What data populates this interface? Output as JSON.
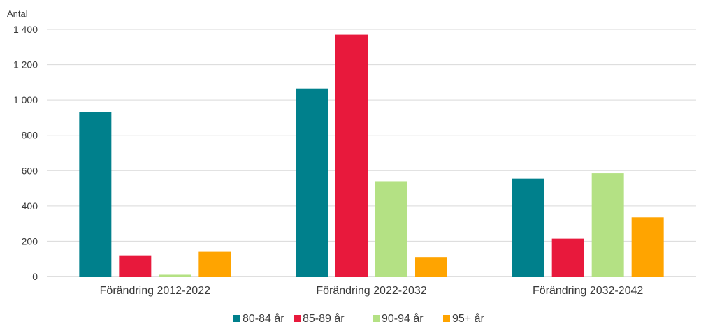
{
  "chart_data": {
    "type": "bar",
    "y_unit_label": "Antal",
    "categories": [
      "Förändring 2012-2022",
      "Förändring 2022-2032",
      "Förändring 2032-2042"
    ],
    "series": [
      {
        "name": "80-84 år",
        "color": "#00808c",
        "values": [
          930,
          1065,
          555
        ]
      },
      {
        "name": "85-89 år",
        "color": "#e8193c",
        "values": [
          120,
          1370,
          215
        ]
      },
      {
        "name": "90-94 år",
        "color": "#b4e184",
        "values": [
          10,
          540,
          585
        ]
      },
      {
        "name": "95+ år",
        "color": "#ffa400",
        "values": [
          140,
          110,
          335
        ]
      }
    ],
    "ylim": [
      0,
      1400
    ],
    "yticks": [
      0,
      200,
      400,
      600,
      800,
      1000,
      1200,
      1400
    ],
    "ytick_labels": [
      "0",
      "200",
      "400",
      "600",
      "800",
      "1 000",
      "1 200",
      "1 400"
    ],
    "grid": true,
    "legend_position": "bottom-center"
  }
}
